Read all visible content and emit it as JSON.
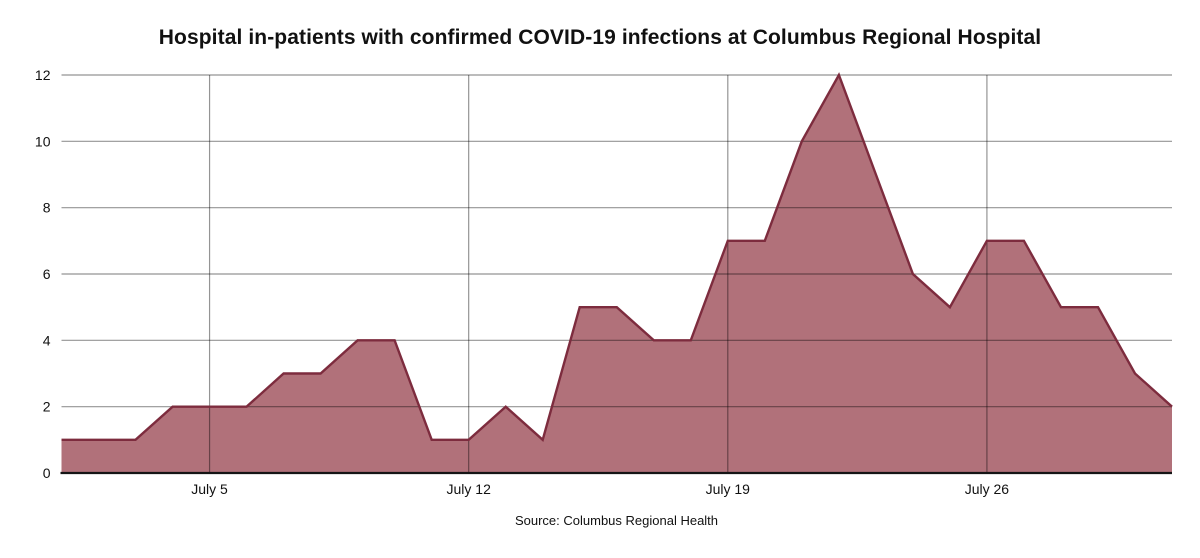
{
  "chart_data": {
    "type": "area",
    "title": "Hospital in-patients with confirmed COVID-19 infections at Columbus Regional Hospital",
    "source_note": "Source: Columbus Regional Health",
    "categories": [
      "July 1",
      "July 2",
      "July 3",
      "July 4",
      "July 5",
      "July 6",
      "July 7",
      "July 8",
      "July 9",
      "July 10",
      "July 11",
      "July 12",
      "July 13",
      "July 14",
      "July 15",
      "July 16",
      "July 17",
      "July 18",
      "July 19",
      "July 20",
      "July 21",
      "July 22",
      "July 23",
      "July 24",
      "July 25",
      "July 26",
      "July 27",
      "July 28",
      "July 29",
      "July 30",
      "July 31"
    ],
    "values": [
      1,
      1,
      1,
      2,
      2,
      2,
      3,
      3,
      4,
      4,
      1,
      1,
      2,
      1,
      5,
      5,
      4,
      4,
      7,
      7,
      10,
      12,
      9,
      6,
      5,
      7,
      7,
      5,
      5,
      3,
      2
    ],
    "xlabel": "",
    "ylabel": "",
    "ylim": [
      0,
      12
    ],
    "y_ticks": [
      0,
      2,
      4,
      6,
      8,
      10,
      12
    ],
    "x_tick_indices": [
      4,
      11,
      18,
      25
    ],
    "x_tick_labels": [
      "July 5",
      "July 12",
      "July 19",
      "July 26"
    ],
    "grid": true,
    "legend": "none",
    "colors": {
      "area_fill": "#b1717a",
      "area_stroke": "#7d2c3e",
      "gridline": "rgba(0,0,0,0.42)",
      "baseline": "#151515",
      "label_text": "#111111"
    }
  }
}
